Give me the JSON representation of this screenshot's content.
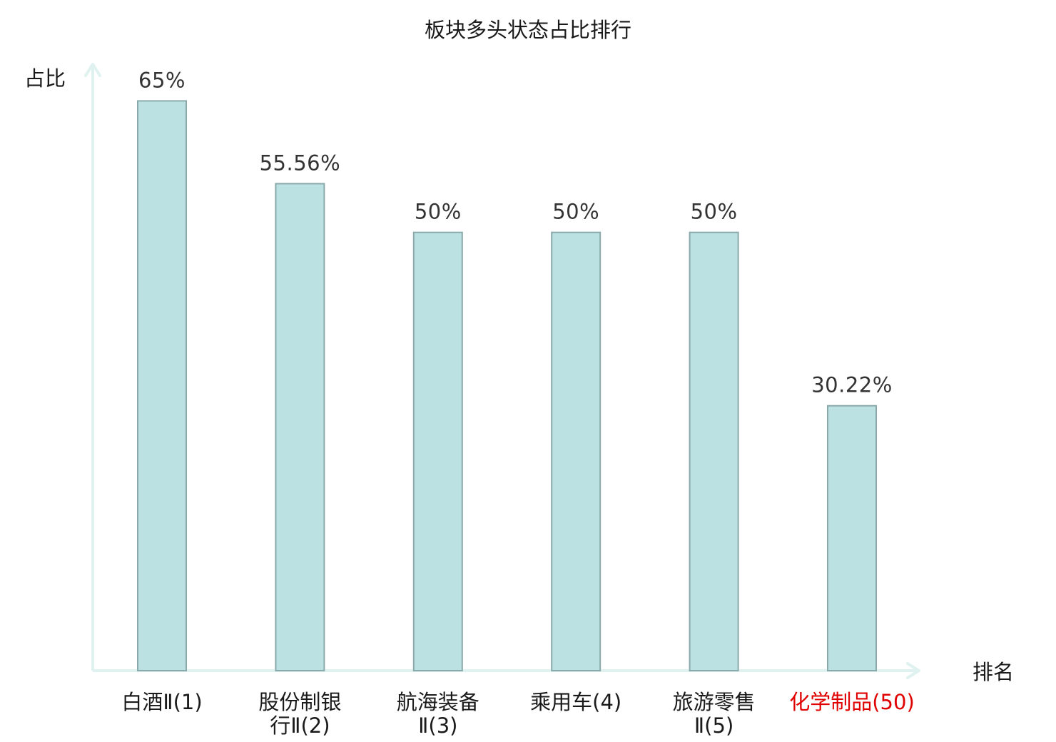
{
  "chart_data": {
    "type": "bar",
    "title": "板块多头状态占比排行",
    "ylabel": "占比",
    "xlabel": "排名",
    "ylim": [
      0,
      70
    ],
    "grid": false,
    "categories": [
      [
        "白酒Ⅱ(1)"
      ],
      [
        "股份制银",
        "行Ⅱ(2)"
      ],
      [
        "航海装备",
        "Ⅱ(3)"
      ],
      [
        "乘用车(4)"
      ],
      [
        "旅游零售",
        "Ⅱ(5)"
      ],
      [
        "化学制品(50)"
      ]
    ],
    "values": [
      65,
      55.56,
      50,
      50,
      50,
      30.22
    ],
    "value_labels": [
      "65%",
      "55.56%",
      "50%",
      "50%",
      "50%",
      "30.22%"
    ],
    "highlight_index": 5
  },
  "colors": {
    "bar_fill": "#bce1e3",
    "bar_stroke": "#8aa9ab",
    "axis": "#dff2ef",
    "highlight_text": "#e00000"
  }
}
